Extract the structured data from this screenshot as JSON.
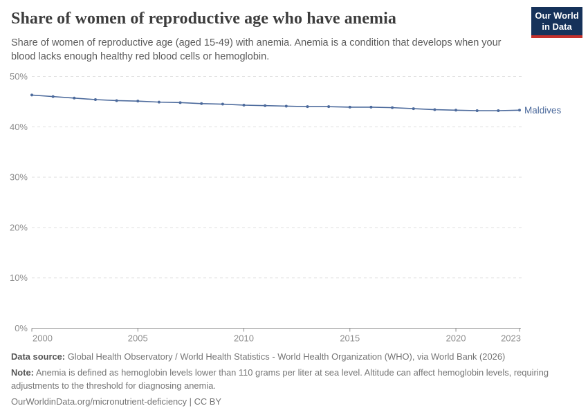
{
  "header": {
    "title": "Share of women of reproductive age who have anemia",
    "subtitle": "Share of women of reproductive age (aged 15-49) with anemia. Anemia is a condition that develops when your blood lacks enough healthy red blood cells or hemoglobin.",
    "logo": {
      "line1": "Our World",
      "line2": "in Data",
      "bg_color": "#16325a",
      "accent_color": "#c5302b"
    }
  },
  "chart_data": {
    "type": "line",
    "title": "Share of women of reproductive age who have anemia",
    "entity": "Maldives",
    "unit": "%",
    "xlim": [
      2000,
      2023
    ],
    "ylim": [
      0,
      50
    ],
    "grid": "horizontal-dashed",
    "legend_position": "line-end-label",
    "grid_color": "#e0e0e0",
    "axis_color": "#8e8e8e",
    "x_ticks": [
      {
        "v": 2000,
        "label": "2000"
      },
      {
        "v": 2005,
        "label": "2005"
      },
      {
        "v": 2010,
        "label": "2010"
      },
      {
        "v": 2015,
        "label": "2015"
      },
      {
        "v": 2020,
        "label": "2020"
      },
      {
        "v": 2023,
        "label": "2023"
      }
    ],
    "y_ticks": [
      {
        "v": 0,
        "label": "0%"
      },
      {
        "v": 10,
        "label": "10%"
      },
      {
        "v": 20,
        "label": "20%"
      },
      {
        "v": 30,
        "label": "30%"
      },
      {
        "v": 40,
        "label": "40%"
      },
      {
        "v": 50,
        "label": "50%"
      }
    ],
    "series": [
      {
        "name": "Maldives",
        "color": "#4C6A9C",
        "x": [
          2000,
          2001,
          2002,
          2003,
          2004,
          2005,
          2006,
          2007,
          2008,
          2009,
          2010,
          2011,
          2012,
          2013,
          2014,
          2015,
          2016,
          2017,
          2018,
          2019,
          2020,
          2021,
          2022,
          2023
        ],
        "values": [
          46.3,
          46.0,
          45.7,
          45.4,
          45.2,
          45.1,
          44.9,
          44.8,
          44.6,
          44.5,
          44.3,
          44.2,
          44.1,
          44.0,
          44.0,
          43.9,
          43.9,
          43.8,
          43.6,
          43.4,
          43.3,
          43.2,
          43.2,
          43.3
        ]
      }
    ]
  },
  "footer": {
    "data_source_label": "Data source:",
    "data_source_text": "Global Health Observatory / World Health Statistics - World Health Organization (WHO), via World Bank (2026)",
    "note_label": "Note:",
    "note_text": "Anemia is defined as hemoglobin levels lower than 110 grams per liter at sea level. Altitude can affect hemoglobin levels, requiring adjustments to the threshold for diagnosing anemia.",
    "link_text": "OurWorldinData.org/micronutrient-deficiency | CC BY"
  }
}
